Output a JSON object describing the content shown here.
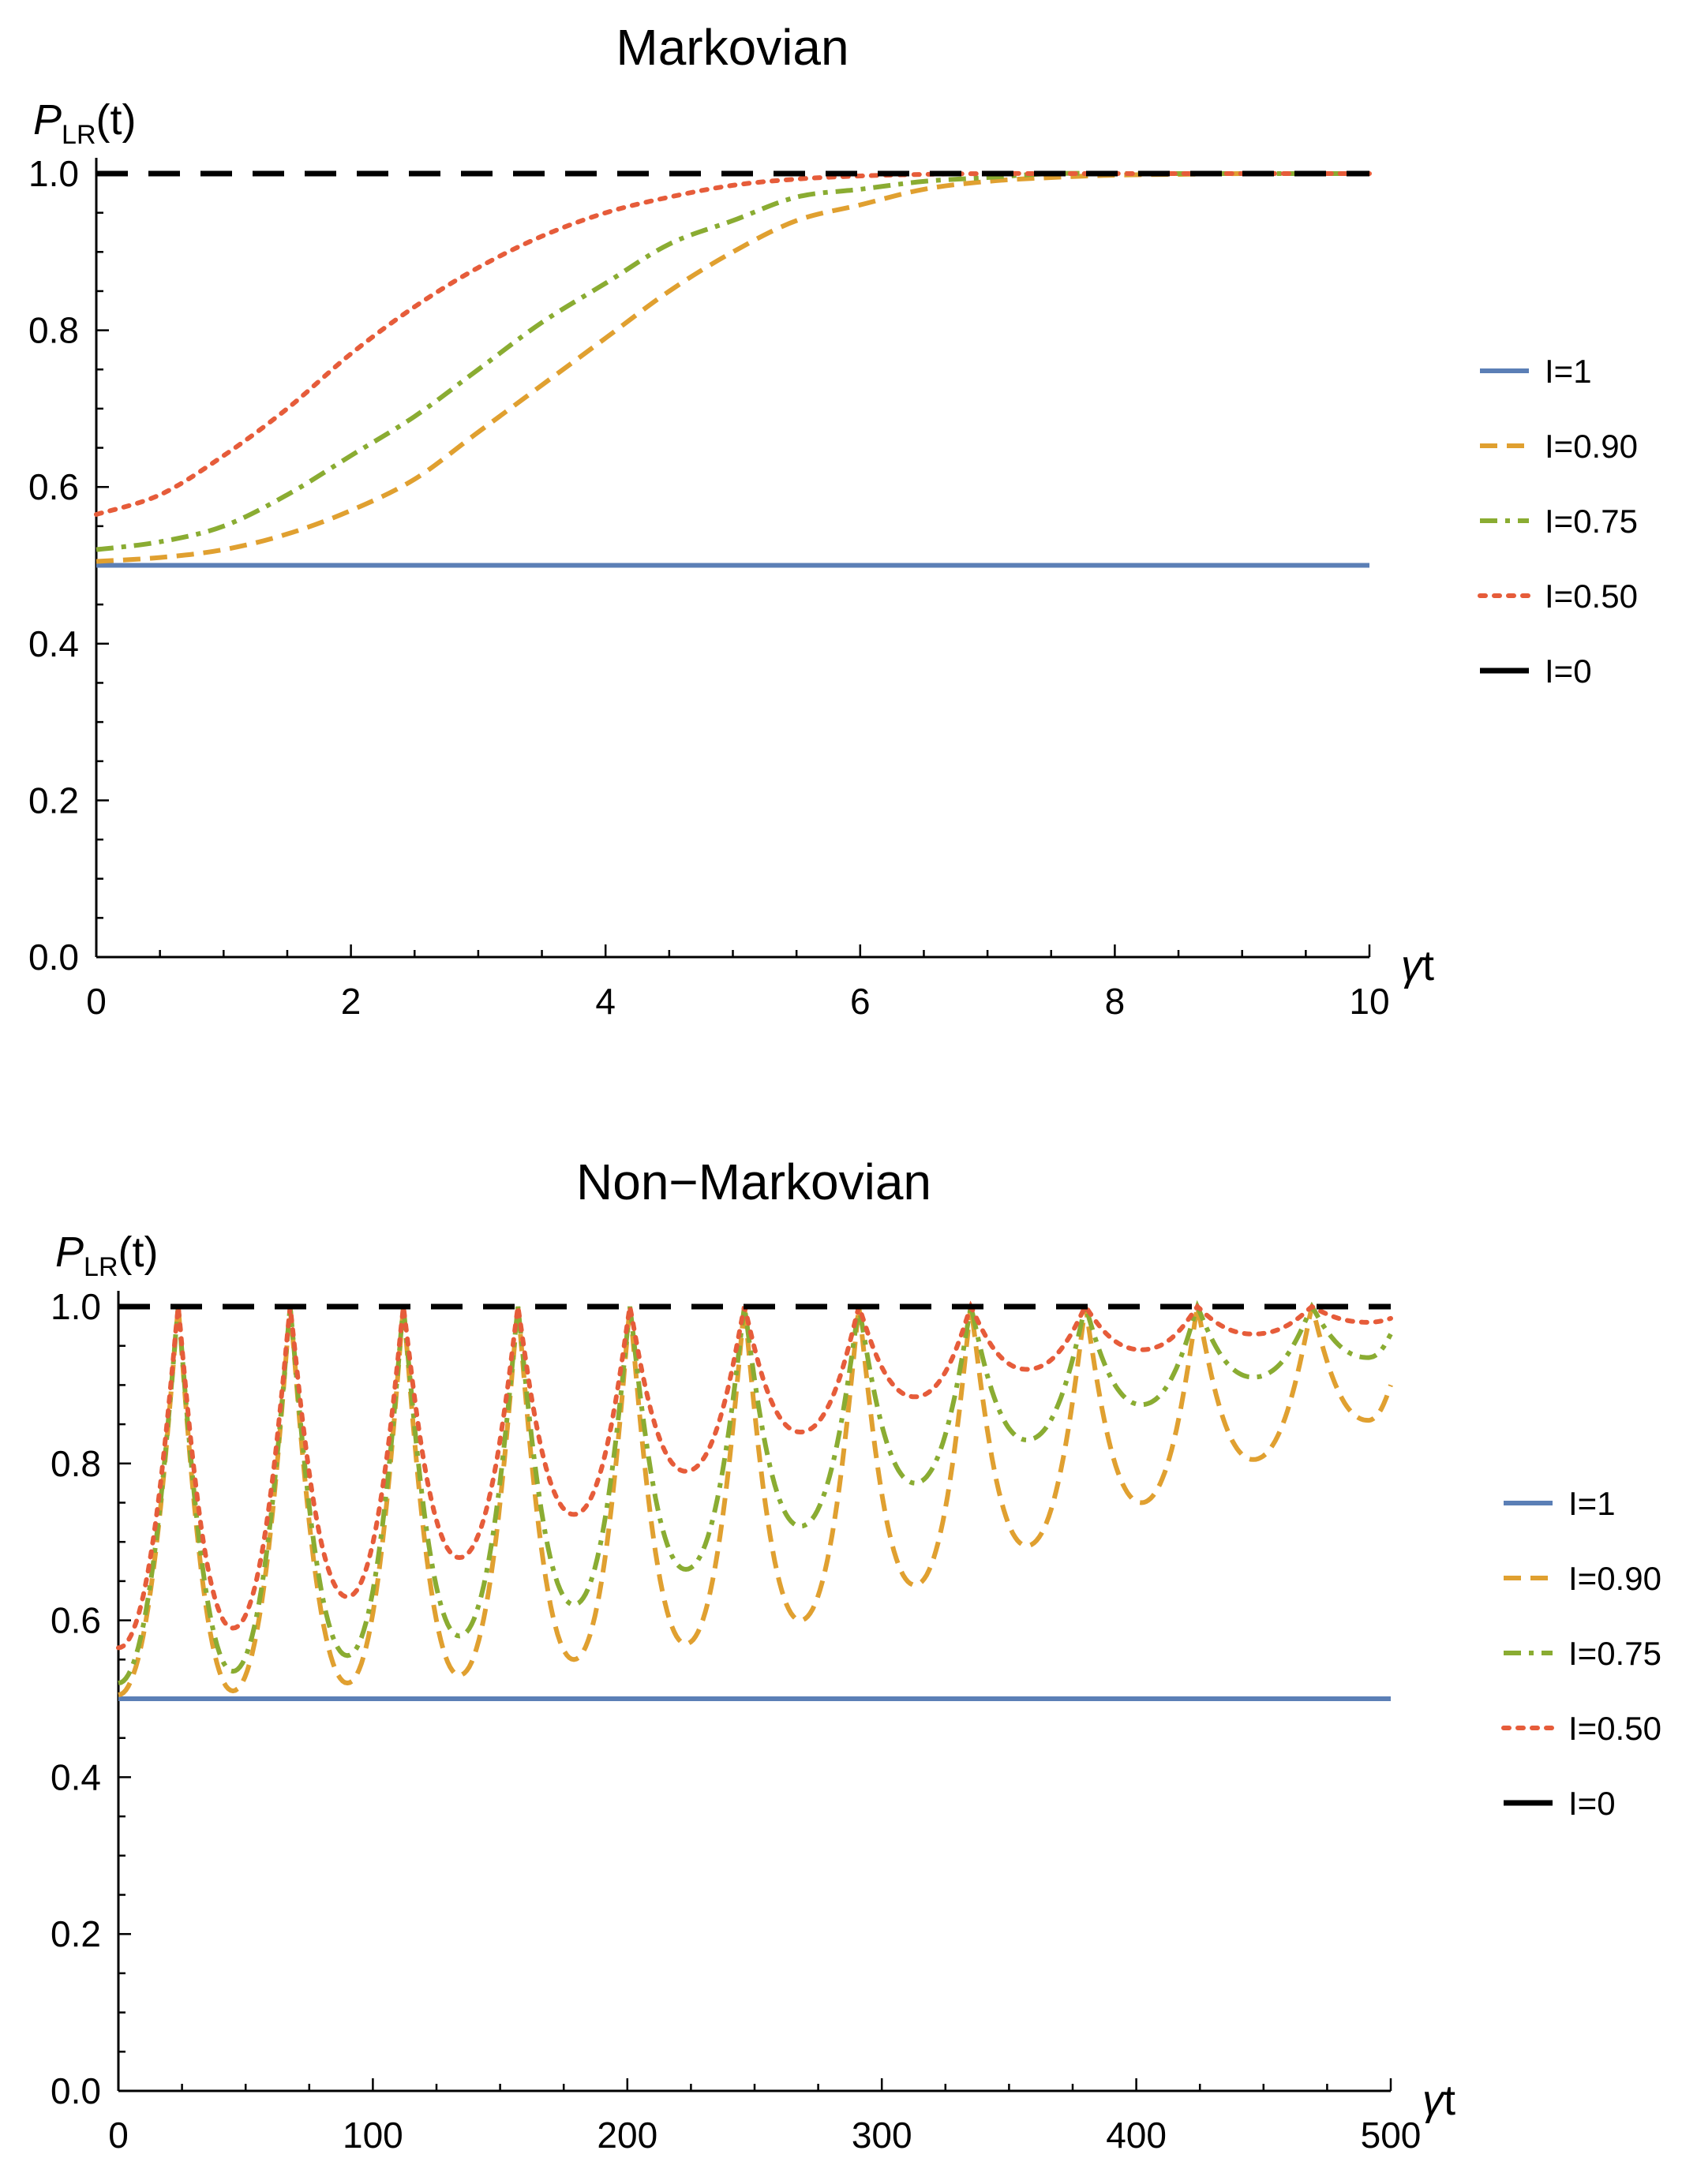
{
  "chart_data": [
    {
      "type": "line",
      "title": "Markovian",
      "ylabel": {
        "main": "P",
        "sub": "LR",
        "arg": "(t)"
      },
      "xlabel": {
        "greek": "γ",
        "var": "t"
      },
      "xlim": [
        0,
        10
      ],
      "ylim": [
        0,
        1
      ],
      "xticks": [
        "0",
        "2",
        "4",
        "6",
        "8",
        "10"
      ],
      "xtick_values": [
        0,
        2,
        4,
        6,
        8,
        10
      ],
      "yticks": [
        "0.0",
        "0.2",
        "0.4",
        "0.6",
        "0.8",
        "1.0"
      ],
      "ytick_values": [
        0.0,
        0.2,
        0.4,
        0.6,
        0.8,
        1.0
      ],
      "series": [
        {
          "name": "I=1",
          "color": "#5b7fb6",
          "style": "solid",
          "x": [
            0,
            10
          ],
          "y": [
            0.5,
            0.5
          ]
        },
        {
          "name": "I=0.90",
          "color": "#e0a030",
          "style": "dashed",
          "x": [
            0,
            0.5,
            1,
            1.5,
            2,
            2.5,
            3,
            3.5,
            4,
            4.5,
            5,
            5.5,
            6,
            6.5,
            7,
            7.5,
            8,
            8.5,
            9,
            9.5,
            10
          ],
          "y": [
            0.505,
            0.51,
            0.52,
            0.54,
            0.57,
            0.61,
            0.67,
            0.73,
            0.79,
            0.85,
            0.9,
            0.94,
            0.96,
            0.98,
            0.99,
            0.995,
            0.998,
            0.999,
            1.0,
            1.0,
            1.0
          ]
        },
        {
          "name": "I=0.75",
          "color": "#8aac32",
          "style": "dashdot",
          "x": [
            0,
            0.5,
            1,
            1.5,
            2,
            2.5,
            3,
            3.5,
            4,
            4.5,
            5,
            5.5,
            6,
            6.5,
            7,
            7.5,
            8,
            8.5,
            9,
            9.5,
            10
          ],
          "y": [
            0.52,
            0.53,
            0.55,
            0.59,
            0.64,
            0.69,
            0.75,
            0.81,
            0.86,
            0.91,
            0.94,
            0.97,
            0.98,
            0.99,
            0.995,
            1.0,
            1.0,
            1.0,
            1.0,
            1.0,
            1.0
          ]
        },
        {
          "name": "I=0.50",
          "color": "#e65c3a",
          "style": "dotted",
          "x": [
            0,
            0.5,
            1,
            1.5,
            2,
            2.5,
            3,
            3.5,
            4,
            4.5,
            5,
            5.5,
            6,
            6.5,
            7,
            7.5,
            8,
            8.5,
            9,
            9.5,
            10
          ],
          "y": [
            0.565,
            0.59,
            0.64,
            0.7,
            0.77,
            0.83,
            0.88,
            0.92,
            0.95,
            0.97,
            0.985,
            0.993,
            0.997,
            0.999,
            1.0,
            1.0,
            1.0,
            1.0,
            1.0,
            1.0,
            1.0
          ]
        },
        {
          "name": "I=0",
          "color": "#000000",
          "style": "longdash",
          "x": [
            0,
            10
          ],
          "y": [
            1.0,
            1.0
          ]
        }
      ]
    },
    {
      "type": "line",
      "title": "Non−Markovian",
      "ylabel": {
        "main": "P",
        "sub": "LR",
        "arg": "(t)"
      },
      "xlabel": {
        "greek": "γ",
        "var": "t"
      },
      "xlim": [
        0,
        500
      ],
      "ylim": [
        0,
        1
      ],
      "xticks": [
        "0",
        "100",
        "200",
        "300",
        "400",
        "500"
      ],
      "xtick_values": [
        0,
        100,
        200,
        300,
        400,
        500
      ],
      "yticks": [
        "0.0",
        "0.2",
        "0.4",
        "0.6",
        "0.8",
        "1.0"
      ],
      "ytick_values": [
        0.0,
        0.2,
        0.4,
        0.6,
        0.8,
        1.0
      ],
      "oscillation_period": 44.6,
      "series": [
        {
          "name": "I=1",
          "color": "#5b7fb6",
          "style": "solid",
          "x": [
            0,
            500
          ],
          "y": [
            0.5,
            0.5
          ]
        },
        {
          "name": "I=0.90",
          "color": "#e0a030",
          "style": "dashed",
          "start": 0.505,
          "peaks_x": [
            23.5,
            67.5,
            112,
            157,
            201,
            246,
            291,
            335,
            380,
            424,
            469
          ],
          "minima_x": [
            45,
            90,
            134,
            179,
            223,
            268,
            313,
            357,
            402,
            446,
            491
          ],
          "minima_y": [
            0.51,
            0.52,
            0.53,
            0.55,
            0.57,
            0.6,
            0.645,
            0.695,
            0.75,
            0.805,
            0.855
          ],
          "end_y": 0.9
        },
        {
          "name": "I=0.75",
          "color": "#8aac32",
          "style": "dashdot",
          "start": 0.52,
          "peaks_x": [
            23.5,
            67.5,
            112,
            157,
            201,
            246,
            291,
            335,
            380,
            424,
            469
          ],
          "minima_x": [
            45,
            90,
            134,
            179,
            223,
            268,
            313,
            357,
            402,
            446,
            491
          ],
          "minima_y": [
            0.535,
            0.555,
            0.58,
            0.62,
            0.665,
            0.72,
            0.775,
            0.83,
            0.875,
            0.91,
            0.935
          ],
          "end_y": 0.965
        },
        {
          "name": "I=0.50",
          "color": "#e65c3a",
          "style": "dotted",
          "start": 0.565,
          "peaks_x": [
            23.5,
            67.5,
            112,
            157,
            201,
            246,
            291,
            335,
            380,
            424,
            469
          ],
          "minima_x": [
            45,
            90,
            134,
            179,
            223,
            268,
            313,
            357,
            402,
            446,
            491
          ],
          "minima_y": [
            0.59,
            0.63,
            0.68,
            0.735,
            0.79,
            0.84,
            0.885,
            0.92,
            0.945,
            0.965,
            0.98
          ],
          "end_y": 0.985
        },
        {
          "name": "I=0",
          "color": "#000000",
          "style": "longdash",
          "x": [
            0,
            500
          ],
          "y": [
            1.0,
            1.0
          ]
        }
      ]
    }
  ]
}
